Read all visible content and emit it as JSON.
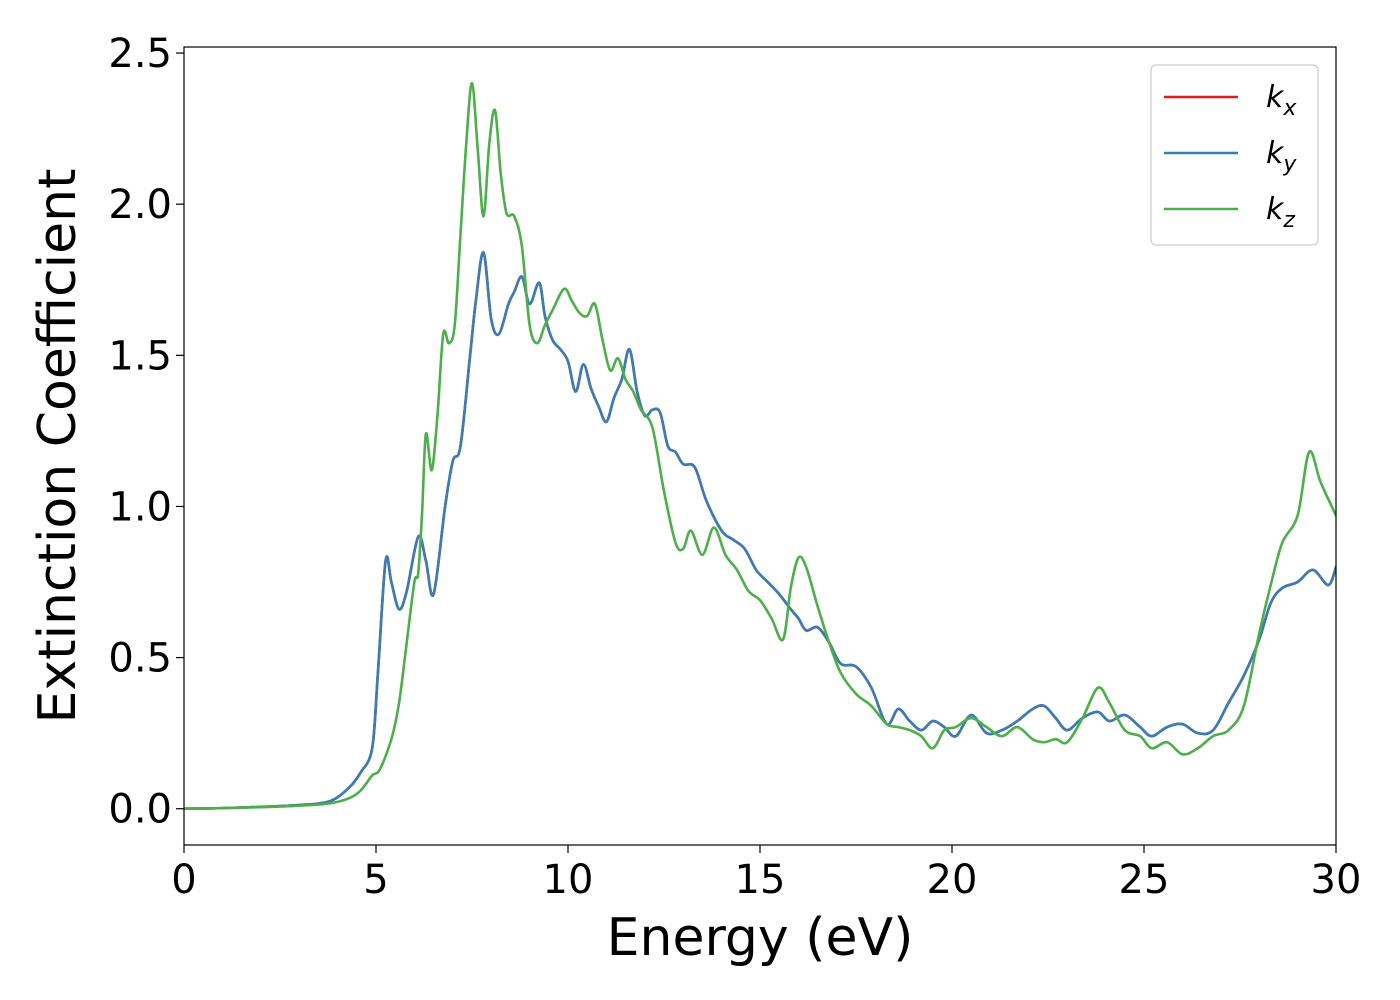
{
  "chart_data": {
    "type": "line",
    "title": "",
    "xlabel": "Energy (eV)",
    "ylabel": "Extinction Coefficient",
    "xlim": [
      0,
      30
    ],
    "ylim": [
      -0.12,
      2.52
    ],
    "xticks": [
      0,
      5,
      10,
      15,
      20,
      25,
      30
    ],
    "xtick_labels": [
      "0",
      "5",
      "10",
      "15",
      "20",
      "25",
      "30"
    ],
    "yticks": [
      0.0,
      0.5,
      1.0,
      1.5,
      2.0,
      2.5
    ],
    "ytick_labels": [
      "0.0",
      "0.5",
      "1.0",
      "1.5",
      "2.0",
      "2.5"
    ],
    "grid": false,
    "legend": {
      "position": "top-right"
    },
    "series": [
      {
        "name": "k",
        "subscript": "x",
        "color": "#e41a1c",
        "points": [
          [
            0,
            0
          ],
          [
            1,
            0.002
          ],
          [
            2,
            0.006
          ],
          [
            3,
            0.012
          ],
          [
            3.8,
            0.025
          ],
          [
            4.3,
            0.07
          ],
          [
            4.6,
            0.12
          ],
          [
            4.9,
            0.2
          ],
          [
            5.05,
            0.45
          ],
          [
            5.25,
            0.82
          ],
          [
            5.4,
            0.75
          ],
          [
            5.6,
            0.66
          ],
          [
            5.8,
            0.72
          ],
          [
            6.1,
            0.9
          ],
          [
            6.3,
            0.82
          ],
          [
            6.5,
            0.71
          ],
          [
            6.8,
            1.0
          ],
          [
            7.0,
            1.15
          ],
          [
            7.2,
            1.2
          ],
          [
            7.45,
            1.5
          ],
          [
            7.6,
            1.68
          ],
          [
            7.8,
            1.84
          ],
          [
            8.0,
            1.62
          ],
          [
            8.2,
            1.57
          ],
          [
            8.45,
            1.67
          ],
          [
            8.6,
            1.71
          ],
          [
            8.8,
            1.76
          ],
          [
            9.0,
            1.67
          ],
          [
            9.25,
            1.74
          ],
          [
            9.4,
            1.63
          ],
          [
            9.6,
            1.55
          ],
          [
            9.8,
            1.52
          ],
          [
            10.0,
            1.48
          ],
          [
            10.2,
            1.38
          ],
          [
            10.4,
            1.47
          ],
          [
            10.6,
            1.39
          ],
          [
            10.8,
            1.33
          ],
          [
            11.0,
            1.28
          ],
          [
            11.2,
            1.36
          ],
          [
            11.4,
            1.42
          ],
          [
            11.6,
            1.52
          ],
          [
            11.8,
            1.38
          ],
          [
            12.0,
            1.3
          ],
          [
            12.2,
            1.32
          ],
          [
            12.4,
            1.31
          ],
          [
            12.6,
            1.2
          ],
          [
            12.8,
            1.18
          ],
          [
            13.0,
            1.14
          ],
          [
            13.3,
            1.13
          ],
          [
            13.6,
            1.02
          ],
          [
            14.0,
            0.92
          ],
          [
            14.3,
            0.89
          ],
          [
            14.6,
            0.86
          ],
          [
            14.9,
            0.79
          ],
          [
            15.2,
            0.75
          ],
          [
            15.5,
            0.71
          ],
          [
            15.8,
            0.66
          ],
          [
            16.0,
            0.63
          ],
          [
            16.2,
            0.59
          ],
          [
            16.5,
            0.6
          ],
          [
            16.8,
            0.55
          ],
          [
            17.1,
            0.48
          ],
          [
            17.5,
            0.47
          ],
          [
            17.9,
            0.4
          ],
          [
            18.3,
            0.28
          ],
          [
            18.6,
            0.33
          ],
          [
            18.9,
            0.29
          ],
          [
            19.2,
            0.26
          ],
          [
            19.5,
            0.29
          ],
          [
            19.8,
            0.27
          ],
          [
            20.1,
            0.24
          ],
          [
            20.5,
            0.31
          ],
          [
            20.9,
            0.25
          ],
          [
            21.3,
            0.26
          ],
          [
            21.7,
            0.29
          ],
          [
            22.1,
            0.33
          ],
          [
            22.4,
            0.34
          ],
          [
            22.7,
            0.3
          ],
          [
            23.0,
            0.26
          ],
          [
            23.4,
            0.3
          ],
          [
            23.8,
            0.32
          ],
          [
            24.1,
            0.29
          ],
          [
            24.5,
            0.31
          ],
          [
            24.9,
            0.27
          ],
          [
            25.2,
            0.24
          ],
          [
            25.6,
            0.27
          ],
          [
            26.0,
            0.28
          ],
          [
            26.4,
            0.25
          ],
          [
            26.8,
            0.26
          ],
          [
            27.2,
            0.35
          ],
          [
            27.6,
            0.44
          ],
          [
            28.0,
            0.56
          ],
          [
            28.3,
            0.68
          ],
          [
            28.6,
            0.73
          ],
          [
            29.0,
            0.75
          ],
          [
            29.4,
            0.79
          ],
          [
            29.8,
            0.74
          ],
          [
            30,
            0.8
          ]
        ]
      },
      {
        "name": "k",
        "subscript": "y",
        "color": "#377eb8",
        "points": [
          [
            0,
            0
          ],
          [
            1,
            0.002
          ],
          [
            2,
            0.006
          ],
          [
            3,
            0.012
          ],
          [
            3.8,
            0.025
          ],
          [
            4.3,
            0.07
          ],
          [
            4.6,
            0.12
          ],
          [
            4.9,
            0.2
          ],
          [
            5.05,
            0.45
          ],
          [
            5.25,
            0.82
          ],
          [
            5.4,
            0.75
          ],
          [
            5.6,
            0.66
          ],
          [
            5.8,
            0.72
          ],
          [
            6.1,
            0.9
          ],
          [
            6.3,
            0.82
          ],
          [
            6.5,
            0.71
          ],
          [
            6.8,
            1.0
          ],
          [
            7.0,
            1.15
          ],
          [
            7.2,
            1.2
          ],
          [
            7.45,
            1.5
          ],
          [
            7.6,
            1.68
          ],
          [
            7.8,
            1.84
          ],
          [
            8.0,
            1.62
          ],
          [
            8.2,
            1.57
          ],
          [
            8.45,
            1.67
          ],
          [
            8.6,
            1.71
          ],
          [
            8.8,
            1.76
          ],
          [
            9.0,
            1.67
          ],
          [
            9.25,
            1.74
          ],
          [
            9.4,
            1.63
          ],
          [
            9.6,
            1.55
          ],
          [
            9.8,
            1.52
          ],
          [
            10.0,
            1.48
          ],
          [
            10.2,
            1.38
          ],
          [
            10.4,
            1.47
          ],
          [
            10.6,
            1.39
          ],
          [
            10.8,
            1.33
          ],
          [
            11.0,
            1.28
          ],
          [
            11.2,
            1.36
          ],
          [
            11.4,
            1.42
          ],
          [
            11.6,
            1.52
          ],
          [
            11.8,
            1.38
          ],
          [
            12.0,
            1.3
          ],
          [
            12.2,
            1.32
          ],
          [
            12.4,
            1.31
          ],
          [
            12.6,
            1.2
          ],
          [
            12.8,
            1.18
          ],
          [
            13.0,
            1.14
          ],
          [
            13.3,
            1.13
          ],
          [
            13.6,
            1.02
          ],
          [
            14.0,
            0.92
          ],
          [
            14.3,
            0.89
          ],
          [
            14.6,
            0.86
          ],
          [
            14.9,
            0.79
          ],
          [
            15.2,
            0.75
          ],
          [
            15.5,
            0.71
          ],
          [
            15.8,
            0.66
          ],
          [
            16.0,
            0.63
          ],
          [
            16.2,
            0.59
          ],
          [
            16.5,
            0.6
          ],
          [
            16.8,
            0.55
          ],
          [
            17.1,
            0.48
          ],
          [
            17.5,
            0.47
          ],
          [
            17.9,
            0.4
          ],
          [
            18.3,
            0.28
          ],
          [
            18.6,
            0.33
          ],
          [
            18.9,
            0.29
          ],
          [
            19.2,
            0.26
          ],
          [
            19.5,
            0.29
          ],
          [
            19.8,
            0.27
          ],
          [
            20.1,
            0.24
          ],
          [
            20.5,
            0.31
          ],
          [
            20.9,
            0.25
          ],
          [
            21.3,
            0.26
          ],
          [
            21.7,
            0.29
          ],
          [
            22.1,
            0.33
          ],
          [
            22.4,
            0.34
          ],
          [
            22.7,
            0.3
          ],
          [
            23.0,
            0.26
          ],
          [
            23.4,
            0.3
          ],
          [
            23.8,
            0.32
          ],
          [
            24.1,
            0.29
          ],
          [
            24.5,
            0.31
          ],
          [
            24.9,
            0.27
          ],
          [
            25.2,
            0.24
          ],
          [
            25.6,
            0.27
          ],
          [
            26.0,
            0.28
          ],
          [
            26.4,
            0.25
          ],
          [
            26.8,
            0.26
          ],
          [
            27.2,
            0.35
          ],
          [
            27.6,
            0.44
          ],
          [
            28.0,
            0.56
          ],
          [
            28.3,
            0.68
          ],
          [
            28.6,
            0.73
          ],
          [
            29.0,
            0.75
          ],
          [
            29.4,
            0.79
          ],
          [
            29.8,
            0.74
          ],
          [
            30,
            0.8
          ]
        ]
      },
      {
        "name": "k",
        "subscript": "z",
        "color": "#4daf4a",
        "points": [
          [
            0,
            0
          ],
          [
            1,
            0.002
          ],
          [
            2,
            0.005
          ],
          [
            3,
            0.01
          ],
          [
            3.8,
            0.018
          ],
          [
            4.3,
            0.035
          ],
          [
            4.6,
            0.06
          ],
          [
            4.9,
            0.11
          ],
          [
            5.1,
            0.13
          ],
          [
            5.4,
            0.23
          ],
          [
            5.6,
            0.35
          ],
          [
            5.8,
            0.55
          ],
          [
            6.0,
            0.75
          ],
          [
            6.1,
            0.78
          ],
          [
            6.2,
            0.98
          ],
          [
            6.3,
            1.24
          ],
          [
            6.45,
            1.12
          ],
          [
            6.6,
            1.3
          ],
          [
            6.75,
            1.57
          ],
          [
            6.9,
            1.54
          ],
          [
            7.05,
            1.6
          ],
          [
            7.2,
            1.9
          ],
          [
            7.35,
            2.2
          ],
          [
            7.5,
            2.4
          ],
          [
            7.65,
            2.18
          ],
          [
            7.8,
            1.96
          ],
          [
            7.95,
            2.2
          ],
          [
            8.1,
            2.31
          ],
          [
            8.25,
            2.1
          ],
          [
            8.4,
            1.97
          ],
          [
            8.6,
            1.96
          ],
          [
            8.8,
            1.86
          ],
          [
            9.0,
            1.6
          ],
          [
            9.2,
            1.54
          ],
          [
            9.4,
            1.6
          ],
          [
            9.6,
            1.65
          ],
          [
            9.9,
            1.72
          ],
          [
            10.1,
            1.68
          ],
          [
            10.3,
            1.64
          ],
          [
            10.5,
            1.63
          ],
          [
            10.7,
            1.67
          ],
          [
            10.9,
            1.55
          ],
          [
            11.1,
            1.45
          ],
          [
            11.3,
            1.49
          ],
          [
            11.5,
            1.42
          ],
          [
            11.7,
            1.38
          ],
          [
            11.9,
            1.32
          ],
          [
            12.2,
            1.26
          ],
          [
            12.5,
            1.05
          ],
          [
            12.8,
            0.88
          ],
          [
            13.0,
            0.86
          ],
          [
            13.2,
            0.92
          ],
          [
            13.5,
            0.84
          ],
          [
            13.8,
            0.93
          ],
          [
            14.1,
            0.84
          ],
          [
            14.4,
            0.79
          ],
          [
            14.7,
            0.72
          ],
          [
            15.0,
            0.69
          ],
          [
            15.3,
            0.63
          ],
          [
            15.6,
            0.56
          ],
          [
            15.8,
            0.73
          ],
          [
            16.0,
            0.83
          ],
          [
            16.2,
            0.8
          ],
          [
            16.5,
            0.67
          ],
          [
            16.8,
            0.55
          ],
          [
            17.1,
            0.45
          ],
          [
            17.5,
            0.38
          ],
          [
            17.9,
            0.34
          ],
          [
            18.3,
            0.28
          ],
          [
            18.6,
            0.27
          ],
          [
            18.9,
            0.26
          ],
          [
            19.2,
            0.24
          ],
          [
            19.5,
            0.2
          ],
          [
            19.8,
            0.26
          ],
          [
            20.1,
            0.27
          ],
          [
            20.5,
            0.3
          ],
          [
            20.9,
            0.27
          ],
          [
            21.3,
            0.24
          ],
          [
            21.7,
            0.27
          ],
          [
            22.1,
            0.23
          ],
          [
            22.4,
            0.22
          ],
          [
            22.7,
            0.23
          ],
          [
            23.0,
            0.22
          ],
          [
            23.4,
            0.3
          ],
          [
            23.8,
            0.4
          ],
          [
            24.1,
            0.35
          ],
          [
            24.5,
            0.26
          ],
          [
            24.9,
            0.24
          ],
          [
            25.2,
            0.2
          ],
          [
            25.6,
            0.22
          ],
          [
            26.0,
            0.18
          ],
          [
            26.4,
            0.2
          ],
          [
            26.8,
            0.24
          ],
          [
            27.2,
            0.26
          ],
          [
            27.6,
            0.34
          ],
          [
            28.0,
            0.58
          ],
          [
            28.3,
            0.74
          ],
          [
            28.6,
            0.88
          ],
          [
            29.0,
            0.97
          ],
          [
            29.3,
            1.18
          ],
          [
            29.6,
            1.08
          ],
          [
            30,
            0.97
          ]
        ]
      }
    ]
  }
}
